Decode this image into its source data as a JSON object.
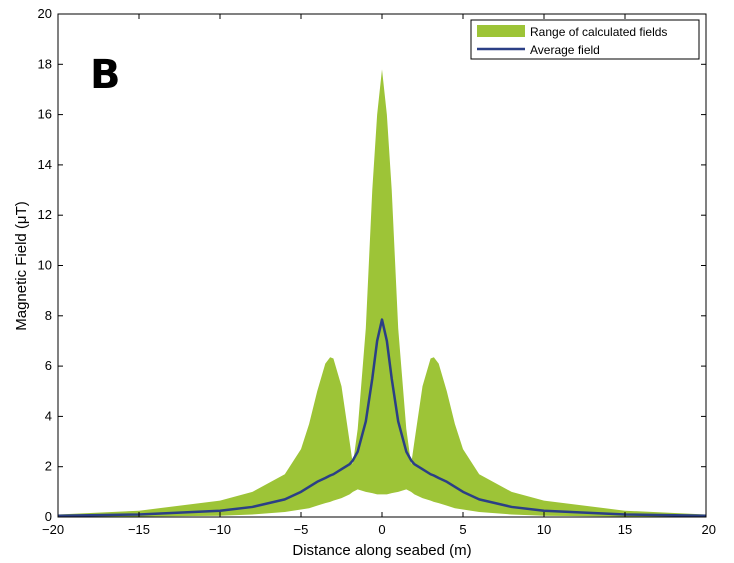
{
  "chart_data": {
    "type": "area",
    "panel_label": "B",
    "xlabel": "Distance along seabed (m)",
    "ylabel_prefix": "Magnetic Field (",
    "ylabel_mu": "μ",
    "ylabel_suffix": "T)",
    "xlim": [
      -20,
      20
    ],
    "ylim": [
      0,
      20
    ],
    "xticks": [
      -20,
      -15,
      -10,
      -5,
      0,
      5,
      10,
      15,
      20
    ],
    "xtick_labels": [
      "−20",
      "−15",
      "−10",
      "−5",
      "0",
      "5",
      "10",
      "15",
      "20"
    ],
    "yticks": [
      0,
      2,
      4,
      6,
      8,
      10,
      12,
      14,
      16,
      18,
      20
    ],
    "ytick_labels": [
      "0",
      "2",
      "4",
      "6",
      "8",
      "10",
      "12",
      "14",
      "16",
      "18",
      "20"
    ],
    "grid": false,
    "legend_position": "top-right",
    "x": [
      -20,
      -15,
      -10,
      -8,
      -6,
      -5,
      -4.5,
      -4,
      -3.5,
      -3.2,
      -3,
      -2.5,
      -2,
      -1.8,
      -1.5,
      -1,
      -0.6,
      -0.3,
      0,
      0.3,
      0.6,
      1,
      1.5,
      1.8,
      2,
      2.5,
      3,
      3.2,
      3.5,
      4,
      4.5,
      5,
      6,
      8,
      10,
      15,
      20
    ],
    "series": [
      {
        "name": "Range of calculated fields",
        "kind": "band",
        "color": "#9dc437",
        "upper": [
          0.1,
          0.25,
          0.65,
          1.0,
          1.7,
          2.7,
          3.7,
          5.0,
          6.1,
          6.35,
          6.3,
          5.2,
          3.0,
          2.1,
          3.5,
          7.5,
          13.0,
          16.0,
          17.8,
          16.0,
          13.0,
          7.5,
          3.5,
          2.1,
          3.0,
          5.2,
          6.3,
          6.35,
          6.1,
          5.0,
          3.7,
          2.7,
          1.7,
          1.0,
          0.65,
          0.25,
          0.1
        ],
        "lower": [
          0.0,
          0.02,
          0.05,
          0.1,
          0.2,
          0.3,
          0.35,
          0.45,
          0.55,
          0.6,
          0.65,
          0.75,
          0.9,
          1.0,
          1.1,
          1.0,
          0.95,
          0.9,
          0.9,
          0.9,
          0.95,
          1.0,
          1.1,
          1.0,
          0.9,
          0.75,
          0.65,
          0.6,
          0.55,
          0.45,
          0.35,
          0.3,
          0.2,
          0.1,
          0.05,
          0.02,
          0.0
        ]
      },
      {
        "name": "Average field",
        "kind": "line",
        "color": "#2b3f86",
        "values": [
          0.05,
          0.1,
          0.25,
          0.4,
          0.7,
          1.0,
          1.2,
          1.4,
          1.55,
          1.65,
          1.7,
          1.9,
          2.1,
          2.25,
          2.6,
          3.8,
          5.5,
          7.0,
          7.85,
          7.0,
          5.5,
          3.8,
          2.6,
          2.25,
          2.1,
          1.9,
          1.7,
          1.65,
          1.55,
          1.4,
          1.2,
          1.0,
          0.7,
          0.4,
          0.25,
          0.1,
          0.05
        ]
      }
    ]
  }
}
